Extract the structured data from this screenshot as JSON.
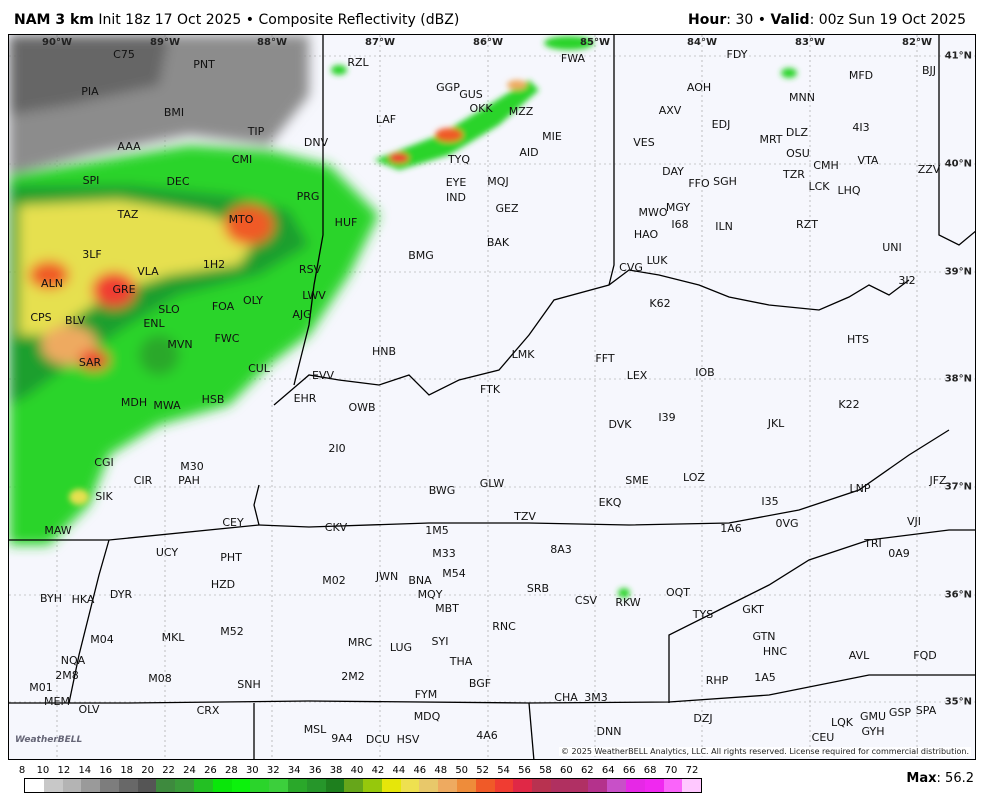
{
  "header": {
    "model": "NAM 3 km",
    "init": "Init 18z 17 Oct 2025",
    "product": "Composite Reflectivity (dBZ)",
    "hour_label": "Hour",
    "hour": "30",
    "valid_label": "Valid",
    "valid": "00z Sun 19 Oct 2025"
  },
  "longitudes": [
    "90°W",
    "89°W",
    "88°W",
    "87°W",
    "86°W",
    "85°W",
    "84°W",
    "83°W",
    "82°W"
  ],
  "latitudes": [
    "41°N",
    "40°N",
    "39°N",
    "38°N",
    "37°N",
    "36°N",
    "35°N"
  ],
  "stations": [
    "C75",
    "PNT",
    "RZL",
    "FWA",
    "FDY",
    "MFD",
    "BJJ",
    "PIA",
    "BMI",
    "GGP",
    "GUS",
    "OKK",
    "MZZ",
    "AOH",
    "MNN",
    "AAA",
    "TIP",
    "LAF",
    "AXV",
    "EDJ",
    "MRT",
    "DLZ",
    "4I3",
    "CMI",
    "DNV",
    "MIE",
    "VES",
    "AID",
    "OSU",
    "CMH",
    "VTA",
    "ZZV",
    "SPI",
    "DEC",
    "TYQ",
    "EYE",
    "MQJ",
    "DAY",
    "FFO",
    "SGH",
    "TZR",
    "LCK",
    "LHQ",
    "IND",
    "PRG",
    "MGY",
    "GEZ",
    "MTO",
    "HUF",
    "TAZ",
    "MWO",
    "I68",
    "ILN",
    "RZT",
    "HAO",
    "BAK",
    "3LF",
    "BMG",
    "UNI",
    "1H2",
    "CVG",
    "LUK",
    "VLA",
    "RSV",
    "ALN",
    "GRE",
    "OLY",
    "LWV",
    "K62",
    "3I2",
    "SLO",
    "FOA",
    "CPS",
    "BLV",
    "ENL",
    "AJG",
    "MVN",
    "FWC",
    "HNB",
    "LMK",
    "FFT",
    "HTS",
    "SAR",
    "CUL",
    "EVV",
    "LEX",
    "IOB",
    "FTK",
    "MDH",
    "MWA",
    "HSB",
    "EHR",
    "OWB",
    "K22",
    "I39",
    "DVK",
    "JKL",
    "2I0",
    "CGI",
    "M30",
    "PAH",
    "CIR",
    "SME",
    "LOZ",
    "BWG",
    "GLW",
    "LNP",
    "JFZ",
    "SIK",
    "EKQ",
    "I35",
    "TZV",
    "CEY",
    "CKV",
    "1M5",
    "MAW",
    "1A6",
    "0VG",
    "VJI",
    "TRI",
    "8A3",
    "M33",
    "UCY",
    "PHT",
    "0A9",
    "JWN",
    "BNA",
    "M54",
    "M02",
    "HZD",
    "SRB",
    "MQY",
    "DYR",
    "BYH",
    "HKA",
    "CSV",
    "RKW",
    "OQT",
    "MBT",
    "TYS",
    "GKT",
    "M04",
    "MKL",
    "M52",
    "RNC",
    "SYI",
    "MRC",
    "LUG",
    "GTN",
    "HNC",
    "AVL",
    "FQD",
    "NQA",
    "2M8",
    "THA",
    "M01",
    "M08",
    "2M2",
    "BGF",
    "SNH",
    "RHP",
    "1A5",
    "MEM",
    "CHA",
    "3M3",
    "FYM",
    "OLV",
    "CRX",
    "DZJ",
    "GSP",
    "SPA",
    "GMU",
    "LQK",
    "GYH",
    "MDQ",
    "MSL",
    "DNN",
    "9A4",
    "DCU",
    "HSV",
    "4A6",
    "CEU"
  ],
  "copyright": "© 2025 WeatherBELL Analytics, LLC. All rights reserved. License required for commercial distribution.",
  "logo_text": "WeatherBELL",
  "colorbar": {
    "ticks": [
      "8",
      "10",
      "12",
      "14",
      "16",
      "18",
      "20",
      "22",
      "24",
      "26",
      "28",
      "30",
      "32",
      "34",
      "36",
      "38",
      "40",
      "42",
      "44",
      "46",
      "48",
      "50",
      "52",
      "54",
      "56",
      "58",
      "60",
      "62",
      "64",
      "66",
      "68",
      "70",
      "72"
    ],
    "colors": [
      "#ffffff",
      "#c8c8c8",
      "#b4b4b4",
      "#9a9a9a",
      "#7d7d7d",
      "#686868",
      "#555555",
      "#3e8a3e",
      "#3a9b3a",
      "#23c023",
      "#0ae60a",
      "#0cf20c",
      "#2bd42b",
      "#3ccf3c",
      "#2aa82a",
      "#26962a",
      "#1e7f1e",
      "#66a61a",
      "#96c80c",
      "#e6e60a",
      "#eee050",
      "#e8c86a",
      "#eeaa60",
      "#ee8c3a",
      "#f05a28",
      "#f03c32",
      "#e02846",
      "#b83250",
      "#b03060",
      "#b03064",
      "#b4328c",
      "#c850c8",
      "#e628e6",
      "#f028f0",
      "#fa64fa",
      "#ffc8ff"
    ],
    "min": 8,
    "max": 72
  },
  "max_label": "Max",
  "max_value": "56.2"
}
